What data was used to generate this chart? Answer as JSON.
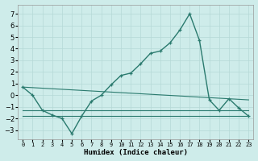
{
  "xlabel": "Humidex (Indice chaleur)",
  "background_color": "#ceecea",
  "grid_color": "#b5d9d6",
  "line_color": "#2a7a6e",
  "x_values": [
    0,
    1,
    2,
    3,
    4,
    5,
    6,
    7,
    8,
    9,
    10,
    11,
    12,
    13,
    14,
    15,
    16,
    17,
    18,
    19,
    20,
    21,
    22,
    23
  ],
  "main_line": [
    0.7,
    0.0,
    -1.3,
    -1.7,
    -2.0,
    -3.3,
    -1.8,
    -0.5,
    0.0,
    0.9,
    1.7,
    1.9,
    2.7,
    3.6,
    3.8,
    4.5,
    5.6,
    7.0,
    4.7,
    -0.4,
    -1.3,
    -0.3,
    -1.1,
    -1.8
  ],
  "line2_x": [
    0,
    23
  ],
  "line2_y": [
    0.7,
    -0.4
  ],
  "line3_x": [
    0,
    23
  ],
  "line3_y": [
    -1.3,
    -1.3
  ],
  "line4_x": [
    0,
    23
  ],
  "line4_y": [
    -1.8,
    -1.8
  ],
  "ylim": [
    -3.8,
    7.8
  ],
  "yticks": [
    -3,
    -2,
    -1,
    0,
    1,
    2,
    3,
    4,
    5,
    6,
    7
  ],
  "xlim": [
    -0.5,
    23.5
  ]
}
